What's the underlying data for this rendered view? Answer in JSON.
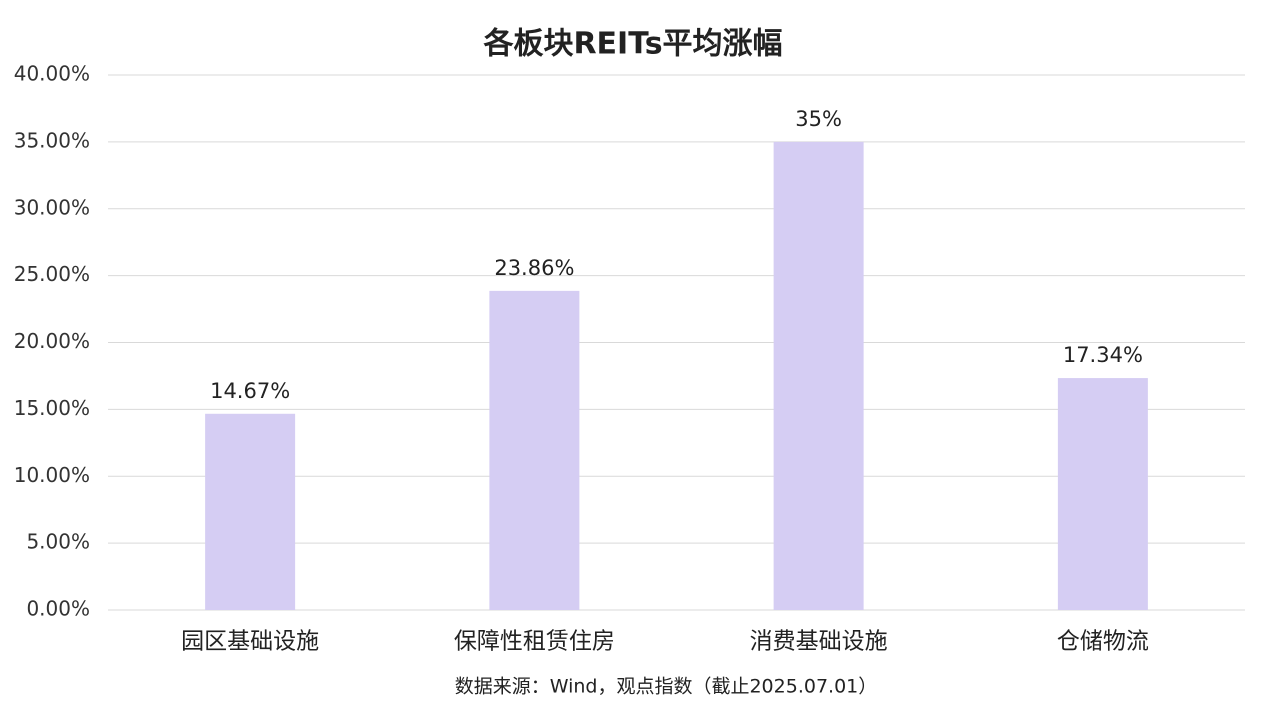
{
  "chart_data": {
    "type": "bar",
    "title": "各板块REITs平均涨幅",
    "categories": [
      "园区基础设施",
      "保障性租赁住房",
      "消费基础设施",
      "仓储物流"
    ],
    "values": [
      14.67,
      23.86,
      35,
      17.34
    ],
    "value_labels": [
      "14.67%",
      "23.86%",
      "35%",
      "17.34%"
    ],
    "color": "#d5cdf3",
    "ylim": [
      0,
      40
    ],
    "yticks": [
      {
        "value": 0,
        "label": "0.00%"
      },
      {
        "value": 5,
        "label": "5.00%"
      },
      {
        "value": 10,
        "label": "10.00%"
      },
      {
        "value": 15,
        "label": "15.00%"
      },
      {
        "value": 20,
        "label": "20.00%"
      },
      {
        "value": 25,
        "label": "25.00%"
      },
      {
        "value": 30,
        "label": "30.00%"
      },
      {
        "value": 35,
        "label": "35.00%"
      },
      {
        "value": 40,
        "label": "40.00%"
      }
    ],
    "grid": true,
    "source": "数据来源：Wind，观点指数（截止2025.07.01）"
  }
}
